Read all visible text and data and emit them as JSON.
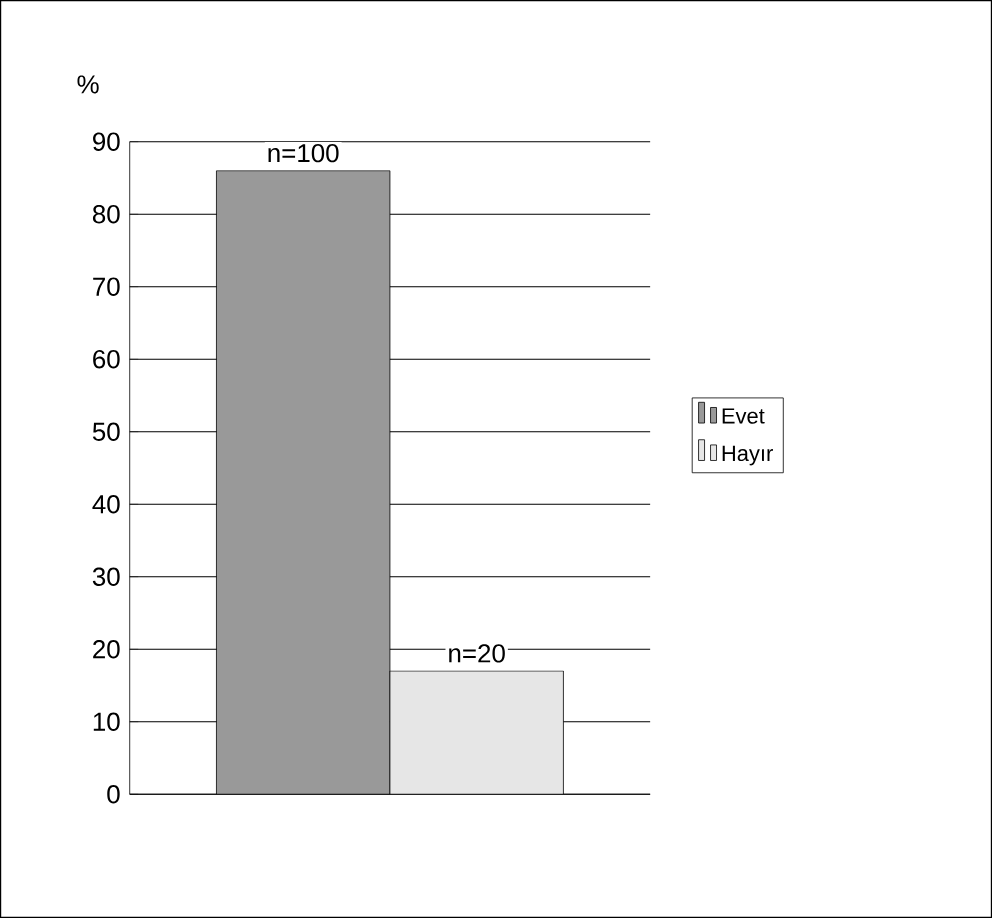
{
  "chart_data": {
    "type": "bar",
    "ylabel": "%",
    "categories": [
      null
    ],
    "series": [
      {
        "name": "Evet",
        "color": "#999999",
        "values": [
          86
        ]
      },
      {
        "name": "Hayır",
        "color": "#e6e6e6",
        "values": [
          17
        ]
      }
    ],
    "annotations": [
      "n=100",
      "n=20"
    ],
    "ylim": [
      0,
      90
    ],
    "yticks": [
      0,
      10,
      20,
      30,
      40,
      50,
      60,
      70,
      80,
      90
    ],
    "grid": "y",
    "legend": "right"
  }
}
